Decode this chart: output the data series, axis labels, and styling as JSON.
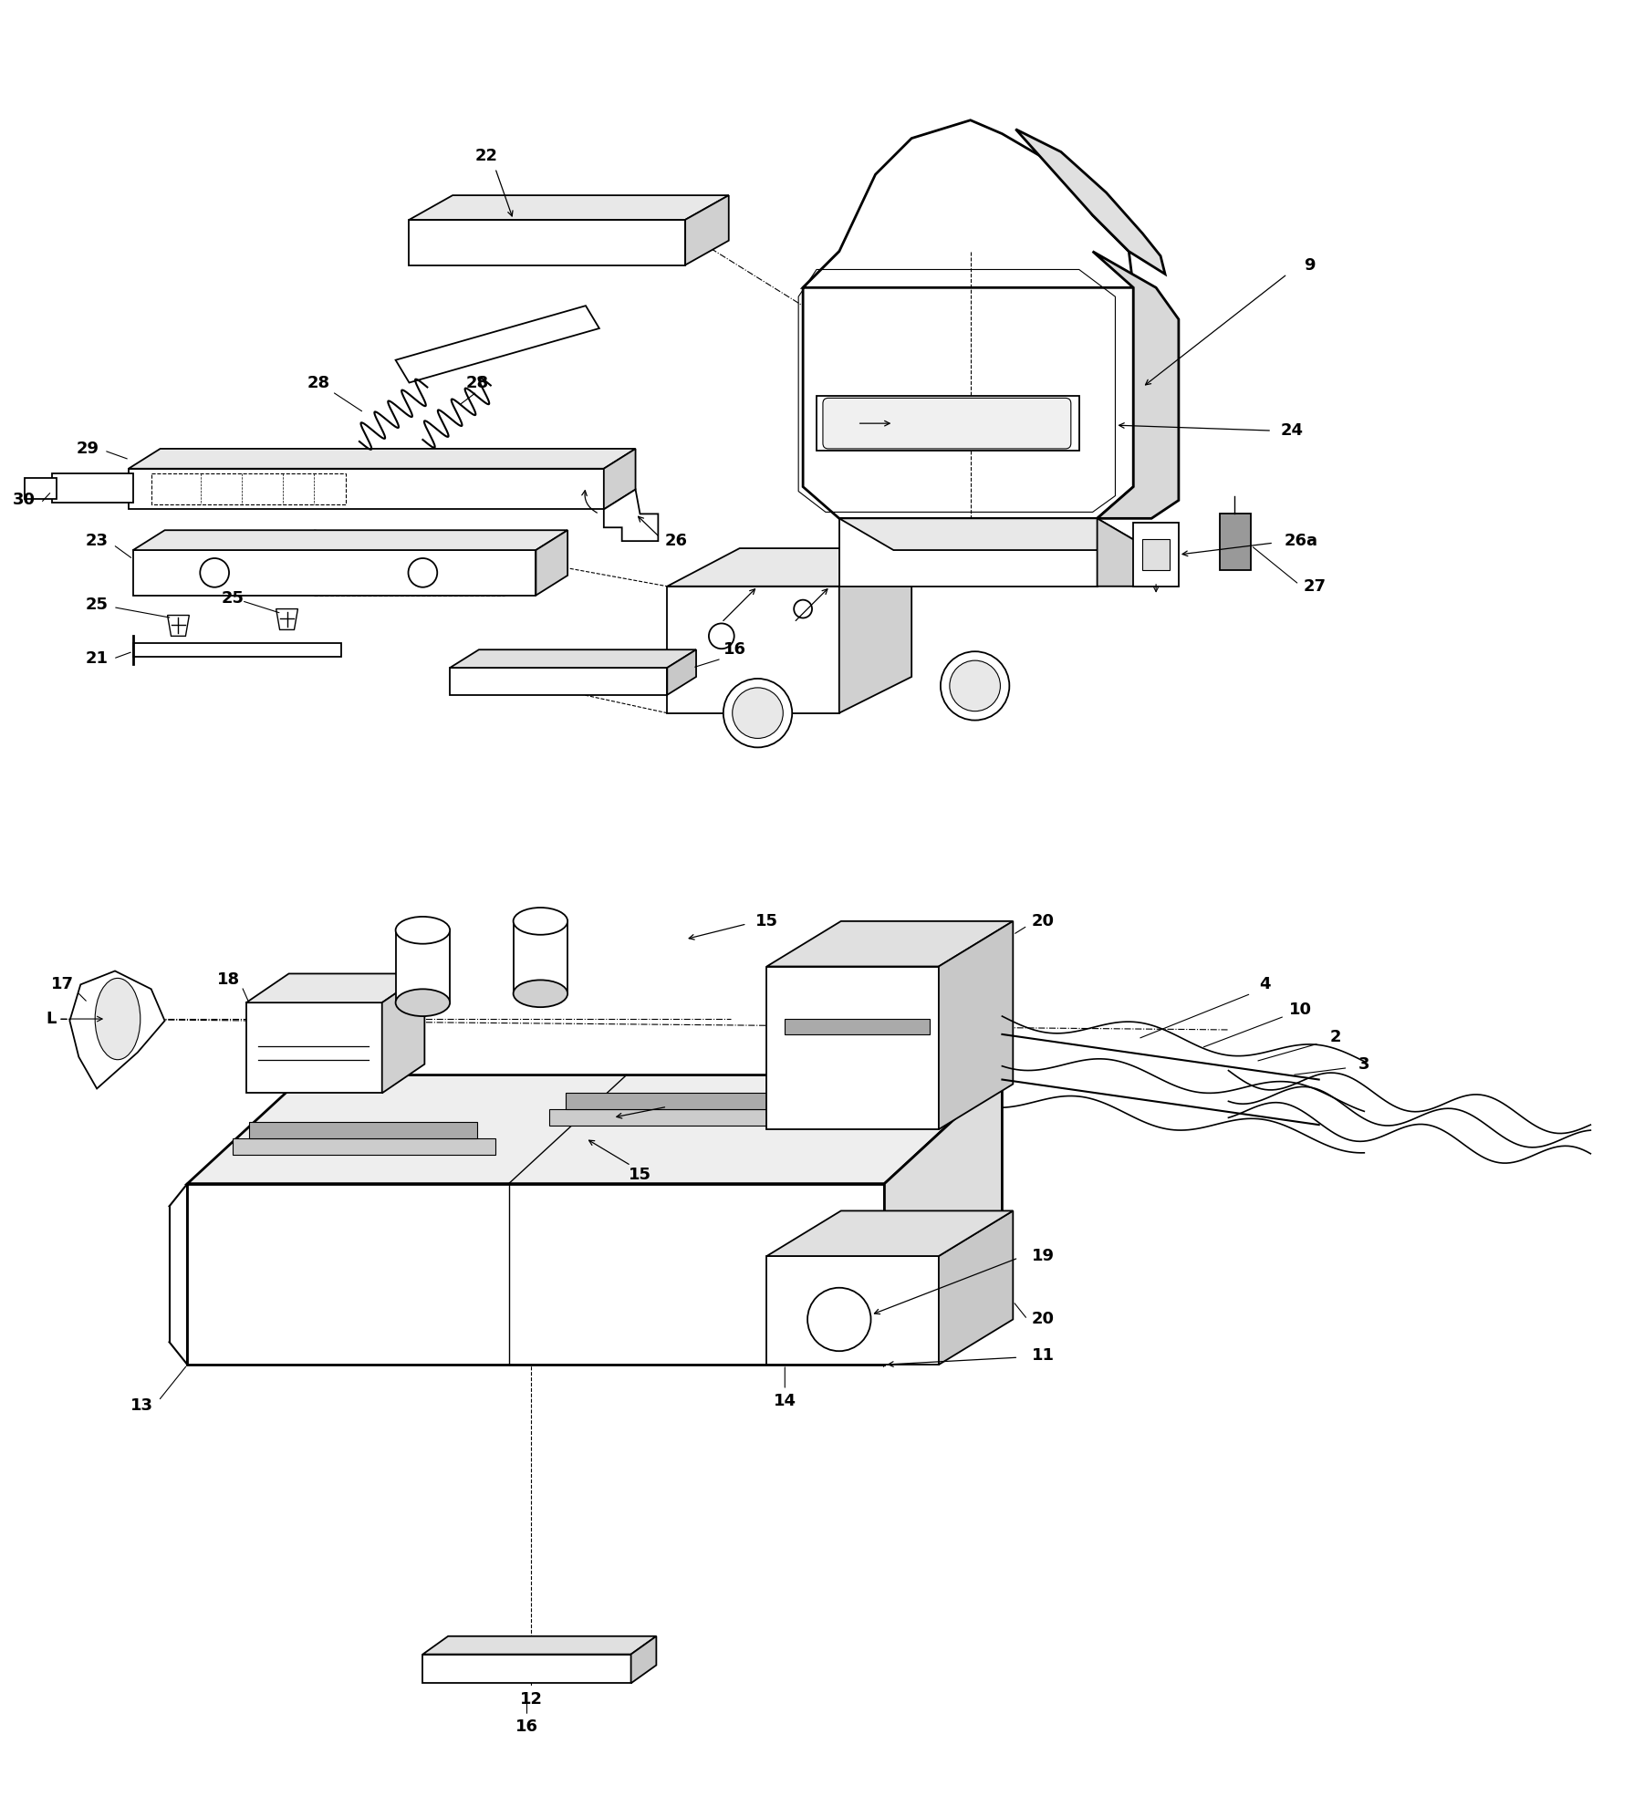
{
  "bg_color": "#ffffff",
  "line_color": "#000000",
  "fig_width": 17.91,
  "fig_height": 19.92,
  "lw_main": 1.3,
  "lw_thick": 2.0,
  "lw_thin": 0.7,
  "label_fs": 13
}
